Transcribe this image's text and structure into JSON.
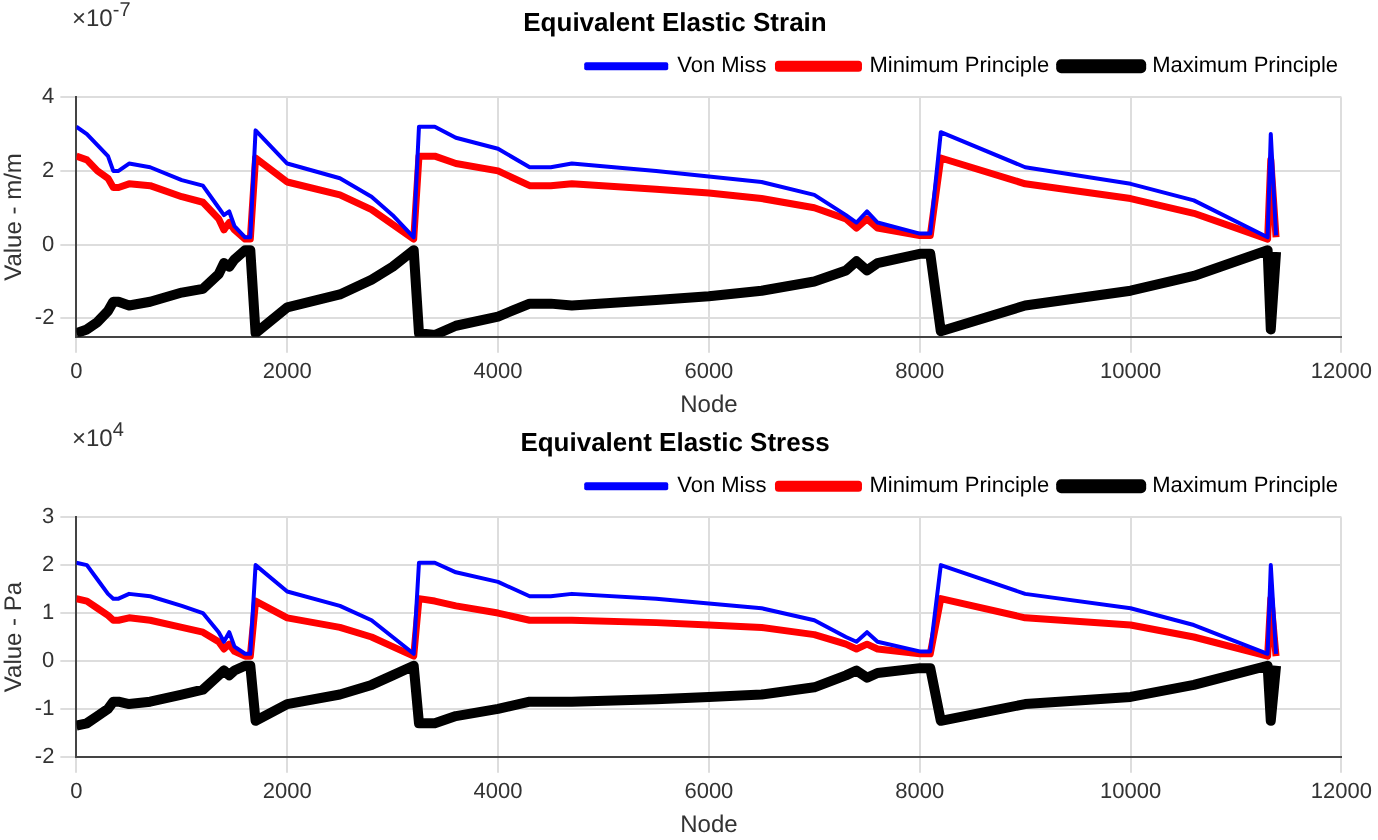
{
  "chart_data": [
    {
      "type": "line",
      "title": "Equivalent Elastic Strain",
      "xlabel": "Node",
      "ylabel": "Value - m/m",
      "annotations": [
        "×10$^{-7}$"
      ],
      "x": [
        0,
        100,
        200,
        300,
        350,
        400,
        500,
        700,
        1000,
        1200,
        1350,
        1400,
        1450,
        1500,
        1600,
        1650,
        1700,
        2000,
        2500,
        2800,
        3000,
        3200,
        3250,
        3400,
        3600,
        4000,
        4300,
        4500,
        4700,
        5500,
        6000,
        6500,
        7000,
        7300,
        7400,
        7500,
        7600,
        8000,
        8100,
        8200,
        9000,
        10000,
        10600,
        11300,
        11330,
        11380
      ],
      "series": [
        {
          "name": "Von Miss",
          "color": "#0000ff",
          "values": [
            3.2,
            3.0,
            2.7,
            2.4,
            2.0,
            2.0,
            2.2,
            2.1,
            1.75,
            1.6,
            1.0,
            0.8,
            0.9,
            0.5,
            0.2,
            0.2,
            3.1,
            2.2,
            1.8,
            1.3,
            0.8,
            0.2,
            3.2,
            3.2,
            2.9,
            2.6,
            2.1,
            2.1,
            2.2,
            2.0,
            1.85,
            1.7,
            1.35,
            0.8,
            0.6,
            0.9,
            0.6,
            0.3,
            0.3,
            3.05,
            2.1,
            1.65,
            1.2,
            0.2,
            3.0,
            0.25
          ]
        },
        {
          "name": "Minimum Principle",
          "color": "#ff0000",
          "values": [
            2.4,
            2.3,
            2.0,
            1.8,
            1.55,
            1.55,
            1.65,
            1.6,
            1.3,
            1.15,
            0.7,
            0.4,
            0.6,
            0.4,
            0.15,
            0.15,
            2.35,
            1.7,
            1.35,
            0.95,
            0.55,
            0.15,
            2.4,
            2.4,
            2.2,
            2.0,
            1.6,
            1.6,
            1.65,
            1.5,
            1.4,
            1.25,
            1.0,
            0.7,
            0.45,
            0.7,
            0.45,
            0.25,
            0.25,
            2.35,
            1.65,
            1.25,
            0.85,
            0.15,
            2.3,
            0.2
          ]
        },
        {
          "name": "Maximum Principle",
          "color": "#000000",
          "values": [
            -2.4,
            -2.3,
            -2.1,
            -1.8,
            -1.55,
            -1.55,
            -1.65,
            -1.55,
            -1.3,
            -1.2,
            -0.8,
            -0.5,
            -0.6,
            -0.4,
            -0.15,
            -0.15,
            -2.4,
            -1.7,
            -1.35,
            -0.95,
            -0.6,
            -0.15,
            -2.4,
            -2.45,
            -2.2,
            -1.95,
            -1.6,
            -1.6,
            -1.65,
            -1.5,
            -1.4,
            -1.25,
            -1.0,
            -0.7,
            -0.45,
            -0.7,
            -0.5,
            -0.25,
            -0.25,
            -2.35,
            -1.65,
            -1.25,
            -0.85,
            -0.15,
            -2.3,
            -0.2
          ]
        }
      ],
      "xlim": [
        0,
        12000
      ],
      "xticks": [
        0,
        2000,
        4000,
        6000,
        8000,
        10000,
        12000
      ],
      "ylim": [
        -2.5,
        4
      ],
      "yticks": [
        -2,
        0,
        2,
        4
      ],
      "grid": true,
      "legend": "top right"
    },
    {
      "type": "line",
      "title": "Equivalent Elastic Stress",
      "xlabel": "Node",
      "ylabel": "Value - Pa",
      "annotations": [
        "×10$^{4}$"
      ],
      "x": [
        0,
        100,
        200,
        300,
        350,
        400,
        500,
        700,
        1000,
        1200,
        1350,
        1400,
        1450,
        1500,
        1600,
        1650,
        1700,
        2000,
        2500,
        2800,
        3000,
        3200,
        3250,
        3400,
        3600,
        4000,
        4300,
        4500,
        4700,
        5500,
        6000,
        6500,
        7000,
        7300,
        7400,
        7500,
        7600,
        8000,
        8100,
        8200,
        9000,
        10000,
        10600,
        11300,
        11330,
        11380
      ],
      "series": [
        {
          "name": "Von Miss",
          "color": "#0000ff",
          "values": [
            2.05,
            2.0,
            1.7,
            1.4,
            1.3,
            1.3,
            1.4,
            1.35,
            1.15,
            1.0,
            0.6,
            0.4,
            0.6,
            0.3,
            0.15,
            0.15,
            2.0,
            1.45,
            1.15,
            0.85,
            0.5,
            0.15,
            2.05,
            2.05,
            1.85,
            1.65,
            1.35,
            1.35,
            1.4,
            1.3,
            1.2,
            1.1,
            0.85,
            0.5,
            0.4,
            0.6,
            0.4,
            0.2,
            0.2,
            2.0,
            1.4,
            1.1,
            0.75,
            0.15,
            2.0,
            0.15
          ]
        },
        {
          "name": "Minimum Principle",
          "color": "#ff0000",
          "values": [
            1.3,
            1.25,
            1.1,
            0.95,
            0.85,
            0.85,
            0.9,
            0.85,
            0.7,
            0.6,
            0.4,
            0.25,
            0.35,
            0.2,
            0.1,
            0.1,
            1.25,
            0.9,
            0.7,
            0.5,
            0.3,
            0.1,
            1.3,
            1.25,
            1.15,
            1.0,
            0.85,
            0.85,
            0.85,
            0.8,
            0.75,
            0.7,
            0.55,
            0.35,
            0.25,
            0.35,
            0.25,
            0.15,
            0.15,
            1.3,
            0.9,
            0.75,
            0.5,
            0.1,
            1.3,
            0.1
          ]
        },
        {
          "name": "Maximum Principle",
          "color": "#000000",
          "values": [
            -1.35,
            -1.3,
            -1.15,
            -1.0,
            -0.85,
            -0.85,
            -0.9,
            -0.85,
            -0.7,
            -0.6,
            -0.3,
            -0.2,
            -0.3,
            -0.2,
            -0.1,
            -0.1,
            -1.25,
            -0.9,
            -0.7,
            -0.5,
            -0.3,
            -0.1,
            -1.3,
            -1.3,
            -1.15,
            -1.0,
            -0.85,
            -0.85,
            -0.85,
            -0.8,
            -0.75,
            -0.7,
            -0.55,
            -0.3,
            -0.2,
            -0.35,
            -0.25,
            -0.15,
            -0.15,
            -1.25,
            -0.9,
            -0.75,
            -0.5,
            -0.1,
            -1.25,
            -0.1
          ]
        }
      ],
      "xlim": [
        0,
        12000
      ],
      "xticks": [
        0,
        2000,
        4000,
        6000,
        8000,
        10000,
        12000
      ],
      "ylim": [
        -2,
        3
      ],
      "yticks": [
        -2,
        -1,
        0,
        1,
        2,
        3
      ],
      "grid": true,
      "legend": "top right"
    }
  ]
}
